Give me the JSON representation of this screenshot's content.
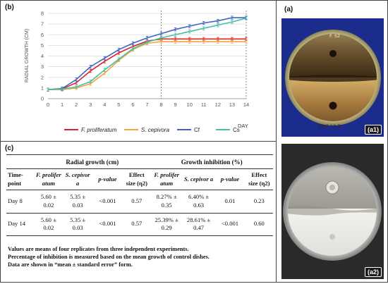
{
  "panel_b": {
    "tag": "(b)"
  },
  "panel_c": {
    "tag": "(c)"
  },
  "panel_a": {
    "tag": "(a)"
  },
  "photo_labels": {
    "a1": "(a1)",
    "a2": "(a2)"
  },
  "dish_writing": {
    "top": "F. S2",
    "bottom": "Abril 13.3"
  },
  "chart_data": {
    "type": "line",
    "xlabel": "DAY",
    "ylabel": "RADIAL GROWTH (CM)",
    "xlim": [
      0,
      14
    ],
    "ylim": [
      0,
      8
    ],
    "xticks": [
      0,
      1,
      2,
      3,
      4,
      5,
      6,
      7,
      8,
      9,
      10,
      11,
      12,
      13,
      14
    ],
    "yticks": [
      0,
      1,
      2,
      3,
      4,
      5,
      6,
      7,
      8
    ],
    "grid": "horizontal",
    "vertical_markers": [
      8,
      14
    ],
    "legend_position": "bottom",
    "x": [
      0,
      1,
      2,
      3,
      4,
      5,
      6,
      7,
      8,
      9,
      10,
      11,
      12,
      13,
      14
    ],
    "series": [
      {
        "name": "F. proliferatum",
        "color": "#d9262e",
        "values": [
          0.85,
          0.9,
          1.5,
          2.6,
          3.5,
          4.3,
          4.9,
          5.4,
          5.6,
          5.6,
          5.6,
          5.6,
          5.6,
          5.6,
          5.6
        ]
      },
      {
        "name": "S. cepivora",
        "color": "#f3a63a",
        "values": [
          0.85,
          0.85,
          1.0,
          1.4,
          2.4,
          3.6,
          4.6,
          5.2,
          5.35,
          5.35,
          5.35,
          5.35,
          5.35,
          5.35,
          5.35
        ]
      },
      {
        "name": "Cf",
        "color": "#3f64c2",
        "values": [
          0.85,
          0.95,
          1.8,
          3.0,
          3.8,
          4.6,
          5.2,
          5.7,
          6.1,
          6.5,
          6.8,
          7.1,
          7.3,
          7.6,
          7.6
        ]
      },
      {
        "name": "Cs",
        "color": "#46bfa9",
        "values": [
          0.85,
          0.9,
          1.1,
          1.6,
          2.7,
          3.7,
          4.7,
          5.3,
          5.7,
          6.0,
          6.3,
          6.6,
          6.9,
          7.2,
          7.55
        ]
      }
    ]
  },
  "table": {
    "group_headers": [
      "Radial growth (cm)",
      "Growth inhibition (%)"
    ],
    "column_headers": {
      "timepoint": "Time-point",
      "fp": "F. prolifer atum",
      "sc": "S. cepivor a",
      "pvalue": "p-value",
      "effect": "Effect size (η2)"
    },
    "rows": [
      {
        "timepoint": "Day 8",
        "rg_fp": "5.60 ± 0.02",
        "rg_sc": "5.35 ± 0.03",
        "rg_p": "<0.001",
        "rg_eff": "0.57",
        "gi_fp": "8.27% ± 0.35",
        "gi_sc": "6.40% ± 0.63",
        "gi_p": "0.01",
        "gi_eff": "0.23"
      },
      {
        "timepoint": "Day 14",
        "rg_fp": "5.60 ± 0.02",
        "rg_sc": "5.35 ± 0.03",
        "rg_p": "<0.001",
        "rg_eff": "0.57",
        "gi_fp": "25.39% ± 0.29",
        "gi_sc": "28.61% ± 0.47",
        "gi_p": "<0.001",
        "gi_eff": "0.60"
      }
    ]
  },
  "notes": [
    "Values are means of four replicates from three independent experiments.",
    "Percentage of inhibition is measured based on the mean growth of control dishes.",
    "Data are shown in “mean ± standard error” form."
  ]
}
